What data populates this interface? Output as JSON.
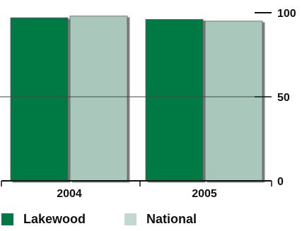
{
  "chart_data": {
    "type": "bar",
    "categories": [
      "2004",
      "2005"
    ],
    "series": [
      {
        "name": "Lakewood",
        "values": [
          97,
          96
        ],
        "color": "#007a45"
      },
      {
        "name": "National",
        "values": [
          98,
          95
        ],
        "color": "#a9c7bb"
      }
    ],
    "ylim": [
      0,
      100
    ],
    "yticks": [
      0,
      50,
      100
    ],
    "y_axis_side": "right",
    "grid": false,
    "legend_position": "bottom-left",
    "title": "",
    "xlabel": "",
    "ylabel": ""
  }
}
